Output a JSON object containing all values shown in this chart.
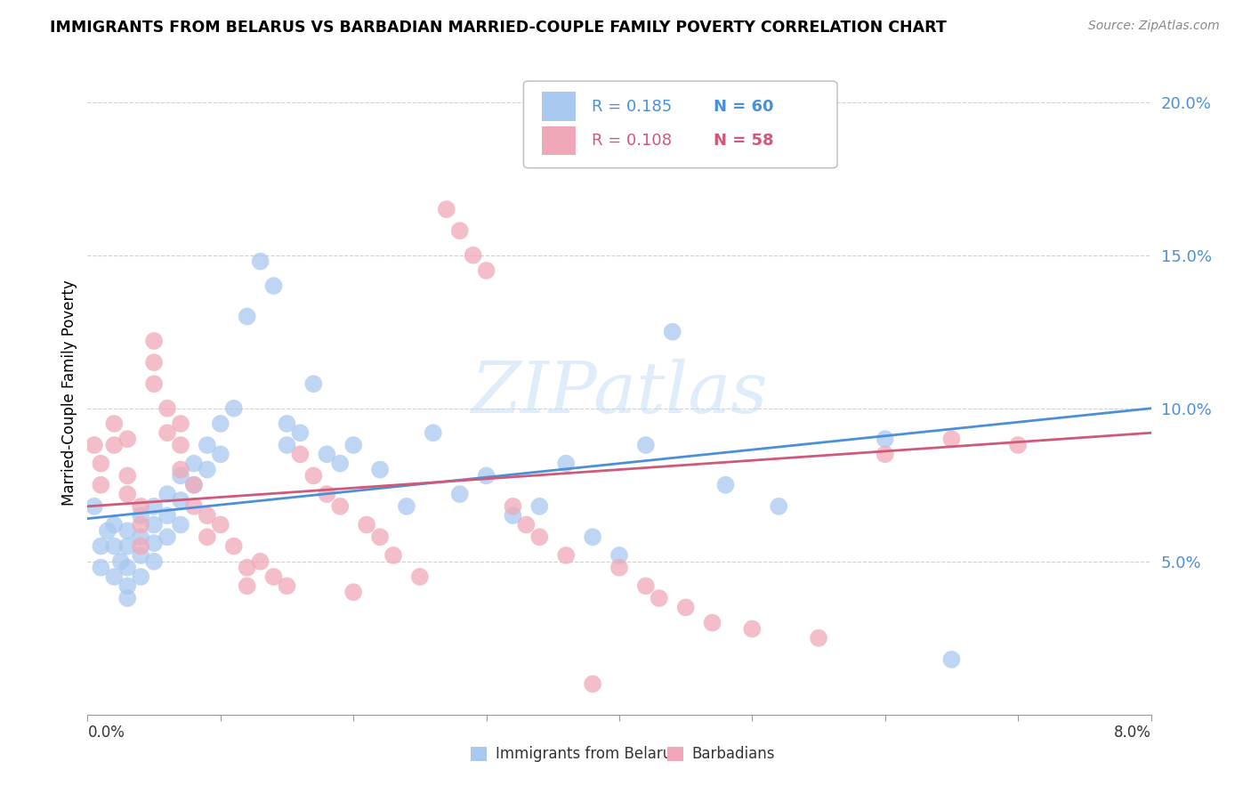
{
  "title": "IMMIGRANTS FROM BELARUS VS BARBADIAN MARRIED-COUPLE FAMILY POVERTY CORRELATION CHART",
  "source": "Source: ZipAtlas.com",
  "ylabel": "Married-Couple Family Poverty",
  "xmin": 0.0,
  "xmax": 0.08,
  "ymin": 0.0,
  "ymax": 0.21,
  "yticks": [
    0.05,
    0.1,
    0.15,
    0.2
  ],
  "ytick_labels": [
    "5.0%",
    "10.0%",
    "15.0%",
    "20.0%"
  ],
  "legend_r1": "R = 0.185",
  "legend_n1": "N = 60",
  "legend_r2": "R = 0.108",
  "legend_n2": "N = 58",
  "color_blue": "#a8c8f0",
  "color_pink": "#f0a8b8",
  "color_blue_dark": "#4a90d9",
  "color_pink_dark": "#d05878",
  "watermark": "ZIPatlas",
  "legend_label_1": "Immigrants from Belarus",
  "legend_label_2": "Barbadians",
  "blue_x": [
    0.0005,
    0.001,
    0.001,
    0.0015,
    0.002,
    0.002,
    0.002,
    0.0025,
    0.003,
    0.003,
    0.003,
    0.003,
    0.003,
    0.004,
    0.004,
    0.004,
    0.004,
    0.005,
    0.005,
    0.005,
    0.005,
    0.006,
    0.006,
    0.006,
    0.007,
    0.007,
    0.007,
    0.008,
    0.008,
    0.009,
    0.009,
    0.01,
    0.01,
    0.011,
    0.012,
    0.013,
    0.014,
    0.015,
    0.015,
    0.016,
    0.017,
    0.018,
    0.019,
    0.02,
    0.022,
    0.024,
    0.026,
    0.028,
    0.03,
    0.032,
    0.034,
    0.036,
    0.038,
    0.04,
    0.042,
    0.044,
    0.048,
    0.052,
    0.06,
    0.065
  ],
  "blue_y": [
    0.068,
    0.055,
    0.048,
    0.06,
    0.045,
    0.055,
    0.062,
    0.05,
    0.06,
    0.055,
    0.048,
    0.042,
    0.038,
    0.065,
    0.058,
    0.052,
    0.045,
    0.068,
    0.062,
    0.056,
    0.05,
    0.072,
    0.065,
    0.058,
    0.078,
    0.07,
    0.062,
    0.082,
    0.075,
    0.088,
    0.08,
    0.095,
    0.085,
    0.1,
    0.13,
    0.148,
    0.14,
    0.095,
    0.088,
    0.092,
    0.108,
    0.085,
    0.082,
    0.088,
    0.08,
    0.068,
    0.092,
    0.072,
    0.078,
    0.065,
    0.068,
    0.082,
    0.058,
    0.052,
    0.088,
    0.125,
    0.075,
    0.068,
    0.09,
    0.018
  ],
  "pink_x": [
    0.0005,
    0.001,
    0.001,
    0.002,
    0.002,
    0.003,
    0.003,
    0.003,
    0.004,
    0.004,
    0.004,
    0.005,
    0.005,
    0.005,
    0.006,
    0.006,
    0.007,
    0.007,
    0.007,
    0.008,
    0.008,
    0.009,
    0.009,
    0.01,
    0.011,
    0.012,
    0.012,
    0.013,
    0.014,
    0.015,
    0.016,
    0.017,
    0.018,
    0.019,
    0.02,
    0.021,
    0.022,
    0.023,
    0.025,
    0.027,
    0.028,
    0.029,
    0.03,
    0.032,
    0.033,
    0.034,
    0.036,
    0.038,
    0.04,
    0.042,
    0.043,
    0.045,
    0.047,
    0.05,
    0.055,
    0.06,
    0.065,
    0.07
  ],
  "pink_y": [
    0.088,
    0.082,
    0.075,
    0.095,
    0.088,
    0.078,
    0.09,
    0.072,
    0.068,
    0.062,
    0.055,
    0.122,
    0.115,
    0.108,
    0.1,
    0.092,
    0.095,
    0.088,
    0.08,
    0.075,
    0.068,
    0.065,
    0.058,
    0.062,
    0.055,
    0.048,
    0.042,
    0.05,
    0.045,
    0.042,
    0.085,
    0.078,
    0.072,
    0.068,
    0.04,
    0.062,
    0.058,
    0.052,
    0.045,
    0.165,
    0.158,
    0.15,
    0.145,
    0.068,
    0.062,
    0.058,
    0.052,
    0.01,
    0.048,
    0.042,
    0.038,
    0.035,
    0.03,
    0.028,
    0.025,
    0.085,
    0.09,
    0.088
  ]
}
